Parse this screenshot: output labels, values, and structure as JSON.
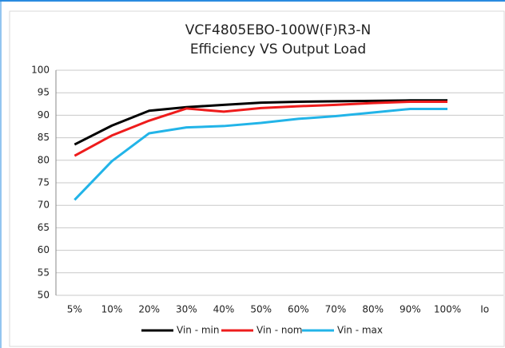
{
  "chart_data": {
    "type": "line",
    "title": "VCF4805EBO-100W(F)R3-N",
    "subtitle": "Efficiency VS Output Load",
    "x_label": "Io",
    "categories": [
      "5%",
      "10%",
      "20%",
      "30%",
      "40%",
      "50%",
      "60%",
      "70%",
      "80%",
      "90%",
      "100%"
    ],
    "series": [
      {
        "name": "Vin - min",
        "color": "#000000",
        "values": [
          83.5,
          87.7,
          91,
          91.8,
          92.3,
          92.8,
          93,
          93.1,
          93.2,
          93.3,
          93.3
        ]
      },
      {
        "name": "Vin - nom",
        "color": "#ee1c1c",
        "values": [
          81,
          85.5,
          88.8,
          91.5,
          90.8,
          91.6,
          92,
          92.3,
          92.7,
          93,
          93
        ]
      },
      {
        "name": "Vin - max",
        "color": "#22b4e8",
        "values": [
          71.2,
          79.8,
          86,
          87.3,
          87.6,
          88.3,
          89.2,
          89.8,
          90.6,
          91.4,
          91.4
        ]
      }
    ],
    "ylim": [
      50,
      100
    ],
    "yticks": [
      50,
      55,
      60,
      65,
      70,
      75,
      80,
      85,
      90,
      95,
      100
    ],
    "grid": true,
    "legend": "bottom"
  }
}
